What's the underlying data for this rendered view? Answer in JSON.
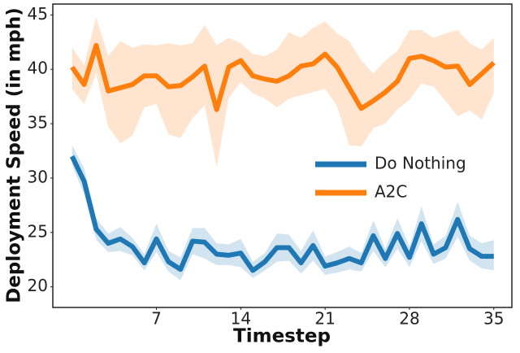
{
  "chart_data": {
    "type": "line",
    "x_label": "Timestep",
    "y_label": "Deployment Speed (in mph)",
    "x": [
      0,
      1,
      2,
      3,
      4,
      5,
      6,
      7,
      8,
      9,
      10,
      11,
      12,
      13,
      14,
      15,
      16,
      17,
      18,
      19,
      20,
      21,
      22,
      23,
      24,
      25,
      26,
      27,
      28,
      29,
      30,
      31,
      32,
      33,
      34,
      35
    ],
    "xlim": [
      -1.6,
      36.5
    ],
    "xticks": [
      7,
      14,
      21,
      28,
      35
    ],
    "ylim": [
      18.1,
      46
    ],
    "yticks": [
      20,
      25,
      30,
      35,
      40,
      45
    ],
    "grid": false,
    "legend": "right",
    "series": [
      {
        "name": "Do Nothing",
        "color": "#1f77b4",
        "values": [
          32,
          29.7,
          25.3,
          24,
          24.4,
          23.7,
          22.2,
          24.4,
          22.3,
          21.6,
          24.2,
          24.1,
          23,
          22.9,
          23.1,
          21.5,
          22.3,
          23.6,
          23.6,
          22.2,
          23.8,
          21.9,
          22.2,
          22.6,
          22.2,
          24.7,
          22.6,
          24.9,
          22.7,
          25.8,
          23,
          23.6,
          26.2,
          23.5,
          22.8,
          22.8
        ],
        "lower": [
          31.2,
          28.5,
          24.3,
          23.2,
          23.3,
          22.9,
          21.5,
          23.2,
          21.4,
          20.6,
          23,
          22.6,
          22,
          22,
          21.8,
          20.8,
          21.5,
          22.3,
          22.4,
          21.2,
          22.4,
          21.1,
          21.3,
          21.6,
          21.4,
          23.3,
          21.8,
          23.5,
          21.8,
          24.2,
          22.1,
          22.6,
          24.6,
          22.4,
          21.7,
          21.5
        ],
        "upper": [
          33,
          30.9,
          26.3,
          24.9,
          25.5,
          24.5,
          23,
          25.8,
          23.3,
          22.7,
          25.4,
          25.4,
          24,
          23.9,
          24.4,
          22.3,
          23.1,
          24.9,
          24.8,
          23.3,
          25.2,
          22.8,
          23.2,
          23.7,
          23.1,
          26.1,
          23.5,
          26.3,
          23.7,
          27.4,
          23.9,
          24.7,
          27.8,
          24.7,
          24,
          24.3
        ]
      },
      {
        "name": "A2C",
        "color": "#ff7f0e",
        "values": [
          40.2,
          38.6,
          42.2,
          38,
          38.3,
          38.6,
          39.4,
          39.4,
          38.4,
          38.5,
          39.3,
          40.3,
          36.3,
          40.2,
          40.8,
          39.4,
          39.1,
          38.9,
          39.4,
          40.3,
          40.5,
          41.4,
          40.2,
          38.3,
          36.4,
          37.1,
          37.9,
          38.9,
          41,
          41.2,
          40.8,
          40.2,
          40.3,
          38.6,
          39.6,
          40.6
        ],
        "lower": [
          38.2,
          36.8,
          39.6,
          34.7,
          33.2,
          33.9,
          36.5,
          36.8,
          34,
          33.7,
          35.5,
          36.7,
          31,
          37.4,
          38.8,
          37.8,
          37.3,
          36.5,
          37.3,
          37.6,
          37.9,
          38.2,
          36.6,
          33,
          32.9,
          34.6,
          35,
          36.3,
          37.2,
          38.7,
          38.4,
          37.1,
          35.7,
          36.2,
          35.4,
          37.8
        ],
        "upper": [
          42,
          40.4,
          44.8,
          41.2,
          42.6,
          42,
          42.3,
          42.2,
          42.4,
          42.2,
          42.4,
          44.1,
          42.2,
          42.9,
          42.4,
          41.4,
          41.2,
          41.8,
          43.4,
          42.9,
          43.8,
          44.4,
          43.3,
          42.6,
          40.8,
          39.6,
          40.8,
          41.7,
          43.6,
          43.6,
          42.9,
          43.3,
          43.6,
          42.4,
          41.8,
          42.9
        ]
      }
    ]
  }
}
